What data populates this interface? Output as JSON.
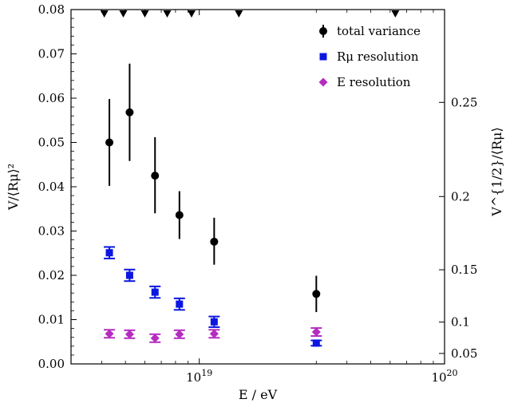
{
  "chart_data": {
    "type": "scatter",
    "xlabel": "E / eV",
    "ylabel": "V/⟨Rμ⟩²",
    "ylabel_right": "V^{1/2}/⟨Rμ⟩",
    "x_scale": "log",
    "xlim": [
      3e+18,
      1e+20
    ],
    "ylim": [
      0,
      0.08
    ],
    "x_ticks": [
      {
        "value": 1e+19,
        "base": "10",
        "exp": "19"
      },
      {
        "value": 1e+20,
        "base": "10",
        "exp": "20"
      }
    ],
    "y_ticks": [
      "0.00",
      "0.01",
      "0.02",
      "0.03",
      "0.04",
      "0.05",
      "0.06",
      "0.07",
      "0.08"
    ],
    "right_ticks": [
      "0.05",
      "0.1",
      "0.15",
      "0.2",
      "0.25"
    ],
    "top_markers_x": [
      4.1e+18,
      4.9e+18,
      6e+18,
      7.4e+18,
      9.3e+18,
      1.45e+19,
      6.3e+19
    ],
    "grid": false,
    "legend_position": "top-right",
    "series": [
      {
        "name": "total variance",
        "marker": "circle",
        "color": "#000000",
        "x": [
          4.3e+18,
          5.2e+18,
          6.6e+18,
          8.3e+18,
          1.15e+19,
          3e+19
        ],
        "y": [
          0.05,
          0.0568,
          0.0425,
          0.0336,
          0.0276,
          0.0158
        ],
        "err_low": [
          0.0098,
          0.011,
          0.0085,
          0.0054,
          0.0052,
          0.0041
        ],
        "err_high": [
          0.0098,
          0.011,
          0.0087,
          0.0054,
          0.0054,
          0.0041
        ]
      },
      {
        "name": "Rμ resolution",
        "marker": "square",
        "color": "#0b16e0",
        "x": [
          4.3e+18,
          5.2e+18,
          6.6e+18,
          8.3e+18,
          1.15e+19,
          3e+19
        ],
        "y": [
          0.0251,
          0.02,
          0.0162,
          0.0135,
          0.0095,
          0.0047
        ],
        "err_low": [
          0.0013,
          0.0013,
          0.0013,
          0.0013,
          0.0012,
          0.0006
        ],
        "err_high": [
          0.0013,
          0.0013,
          0.0013,
          0.0013,
          0.0012,
          0.0006
        ]
      },
      {
        "name": "E resolution",
        "marker": "diamond",
        "color": "#b52cc0",
        "x": [
          4.3e+18,
          5.2e+18,
          6.6e+18,
          8.3e+18,
          1.15e+19,
          3e+19
        ],
        "y": [
          0.0068,
          0.0067,
          0.0058,
          0.0067,
          0.0068,
          0.0072
        ],
        "err_low": [
          0.0009,
          0.0009,
          0.0009,
          0.0009,
          0.0009,
          0.0009
        ],
        "err_high": [
          0.0009,
          0.0009,
          0.0009,
          0.0009,
          0.0009,
          0.0009
        ]
      }
    ]
  }
}
